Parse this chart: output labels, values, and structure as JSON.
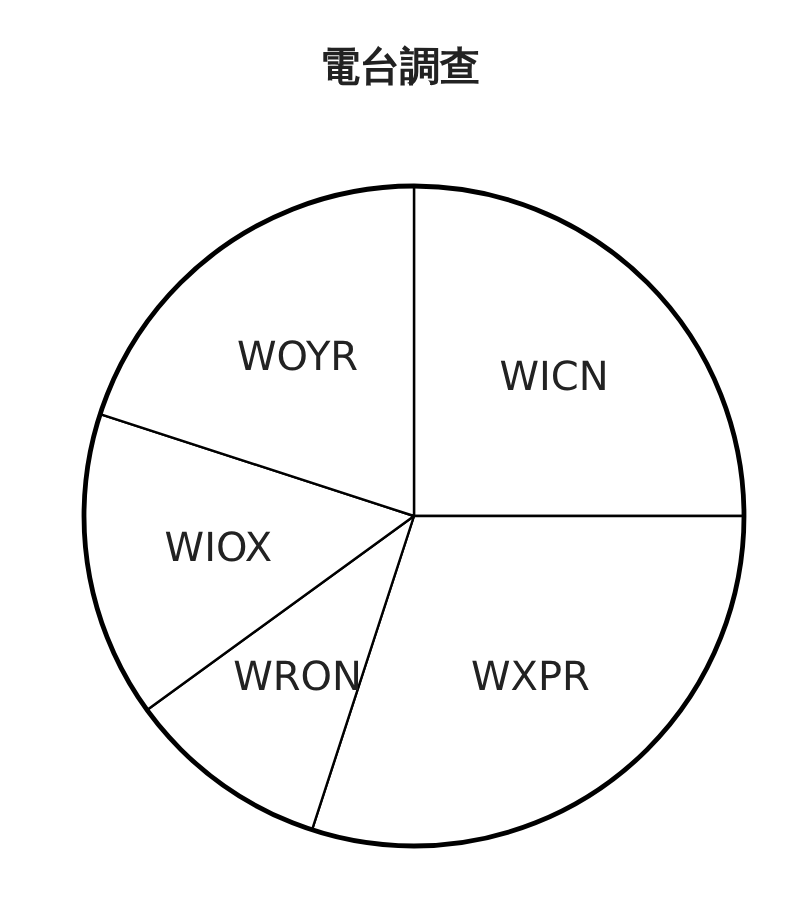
{
  "chart_data": {
    "type": "pie",
    "title": "電台調查",
    "categories": [
      "WICN",
      "WXPR",
      "WRON",
      "WIOX",
      "WOYR"
    ],
    "values": [
      25,
      30,
      10,
      15,
      20
    ],
    "colors": [
      "#ffffff",
      "#ffffff",
      "#ffffff",
      "#ffffff",
      "#ffffff"
    ]
  }
}
